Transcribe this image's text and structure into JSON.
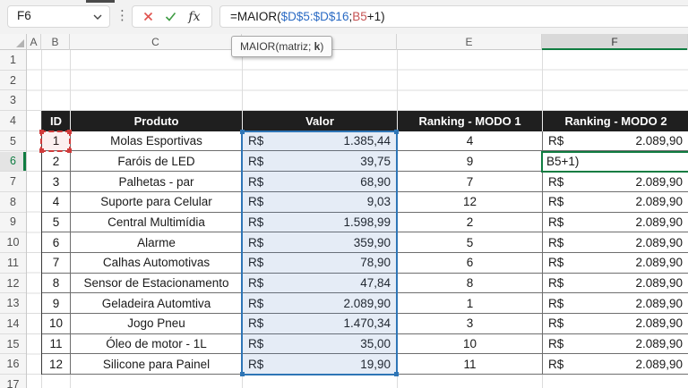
{
  "name_box": {
    "value": "F6"
  },
  "formula_bar": {
    "fx_label": "fx",
    "parts": [
      {
        "text": "=MAIOR(",
        "color": "#1a1a1a"
      },
      {
        "text": "$D$5:$D$16",
        "color": "#2B6BC4"
      },
      {
        "text": ";",
        "color": "#1a1a1a"
      },
      {
        "text": "B5",
        "color": "#C65353"
      },
      {
        "text": "+1)",
        "color": "#1a1a1a"
      }
    ]
  },
  "tooltip": {
    "before": "MAIOR(matriz; ",
    "arg": "k",
    "after": ")"
  },
  "sheet": {
    "column_letters": [
      "A",
      "B",
      "C",
      "D",
      "E",
      "F"
    ],
    "row_numbers": [
      1,
      2,
      3,
      4,
      5,
      6,
      7,
      8,
      9,
      10,
      11,
      12,
      13,
      14,
      15,
      16,
      17
    ],
    "active_column": "F",
    "active_row": 6
  },
  "table": {
    "headers": [
      "ID",
      "Produto",
      "Valor",
      "Ranking - MODO 1",
      "Ranking - MODO 2"
    ],
    "currency_symbol": "R$",
    "rows": [
      {
        "id": 1,
        "produto": "Molas Esportivas",
        "valor": "1.385,44",
        "rank1": 4,
        "rank2": "2.089,90"
      },
      {
        "id": 2,
        "produto": "Faróis de LED",
        "valor": "39,75",
        "rank1": 9,
        "editing_text": "B5+1)"
      },
      {
        "id": 3,
        "produto": "Palhetas - par",
        "valor": "68,90",
        "rank1": 7,
        "rank2": "2.089,90"
      },
      {
        "id": 4,
        "produto": "Suporte para Celular",
        "valor": "9,03",
        "rank1": 12,
        "rank2": "2.089,90"
      },
      {
        "id": 5,
        "produto": "Central Multimídia",
        "valor": "1.598,99",
        "rank1": 2,
        "rank2": "2.089,90"
      },
      {
        "id": 6,
        "produto": "Alarme",
        "valor": "359,90",
        "rank1": 5,
        "rank2": "2.089,90"
      },
      {
        "id": 7,
        "produto": "Calhas Automotivas",
        "valor": "78,90",
        "rank1": 6,
        "rank2": "2.089,90"
      },
      {
        "id": 8,
        "produto": "Sensor de Estacionamento",
        "valor": "47,84",
        "rank1": 8,
        "rank2": "2.089,90"
      },
      {
        "id": 9,
        "produto": "Geladeira Automtiva",
        "valor": "2.089,90",
        "rank1": 1,
        "rank2": "2.089,90"
      },
      {
        "id": 10,
        "produto": "Jogo Pneu",
        "valor": "1.470,34",
        "rank1": 3,
        "rank2": "2.089,90"
      },
      {
        "id": 11,
        "produto": "Óleo de motor - 1L",
        "valor": "35,00",
        "rank1": 10,
        "rank2": "2.089,90"
      },
      {
        "id": 12,
        "produto": "Silicone para Painel",
        "valor": "19,90",
        "rank1": 11,
        "rank2": "2.089,90"
      }
    ]
  },
  "colors": {
    "edit_green": "#107C41",
    "reference_blue": "#2E75B6",
    "reference_red": "#D03B3B",
    "table_header_bg": "#1F1F1F",
    "referenced_range_fill": "#DCE7F3"
  }
}
